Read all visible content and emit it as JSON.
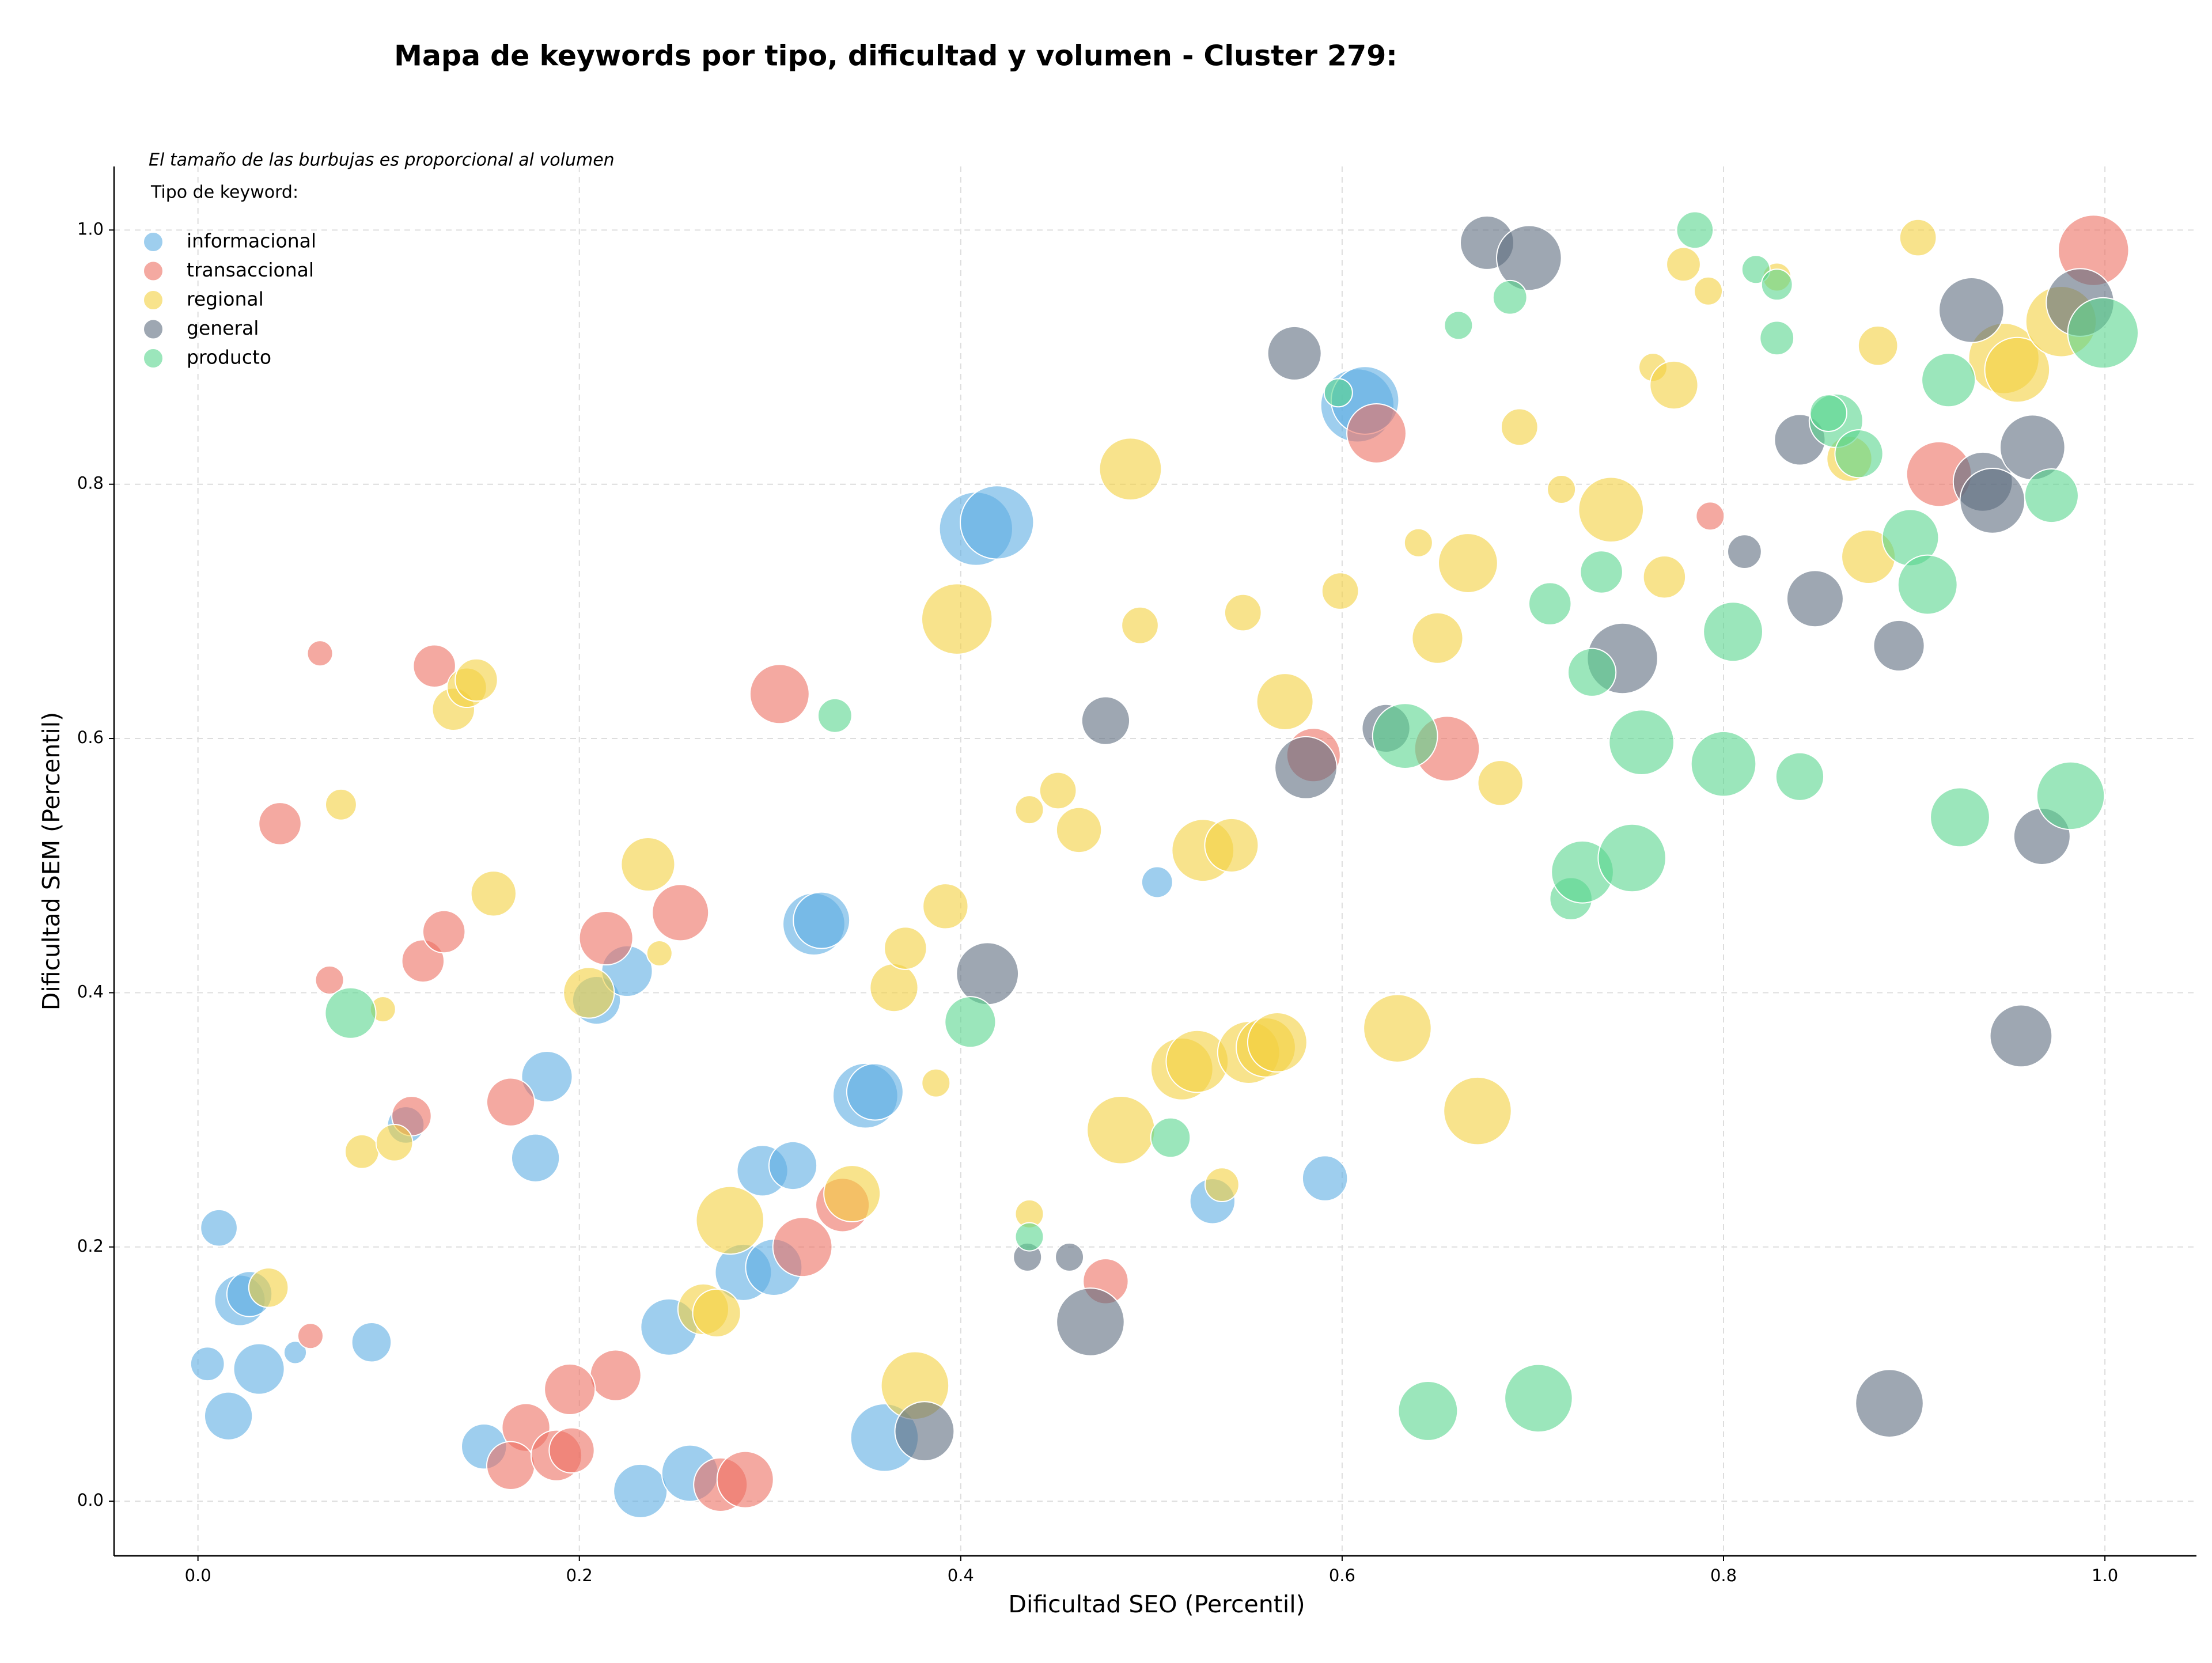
{
  "chart_data": {
    "type": "scatter",
    "title": "Mapa de keywords por tipo, dificultad y volumen - Cluster 279:",
    "xlabel": "Dificultad SEO (Percentil)",
    "ylabel": "Dificultad SEM (Percentil)",
    "note": "El tamaño de las burbujas es proporcional al volumen",
    "legend_title": "Tipo de keyword:",
    "legend": "upper left",
    "grid": true,
    "xlim": [
      -0.044,
      1.048
    ],
    "ylim": [
      -0.043,
      1.05
    ],
    "xticks": [
      {
        "value": 0,
        "label": "0.0"
      },
      0.2,
      0.4,
      0.6,
      0.8,
      {
        "value": 1,
        "label": "1.0"
      }
    ],
    "yticks": [
      {
        "value": 0,
        "label": "0.0"
      },
      0.2,
      0.4,
      0.6,
      0.8,
      {
        "value": 1,
        "label": "1.0"
      }
    ],
    "series": [
      {
        "name": "informacional",
        "color": "#5DADE2",
        "x": [
          0.005,
          0.011,
          0.022,
          0.027,
          0.032,
          0.016,
          0.051,
          0.091,
          0.109,
          0.177,
          0.183,
          0.209,
          0.225,
          0.15,
          0.232,
          0.247,
          0.258,
          0.286,
          0.302,
          0.296,
          0.312,
          0.323,
          0.327,
          0.35,
          0.355,
          0.36,
          0.408,
          0.419,
          0.503,
          0.532,
          0.591,
          0.608,
          0.612
        ],
        "values": [
          0.108,
          0.215,
          0.158,
          0.163,
          0.104,
          0.067,
          0.117,
          0.125,
          0.296,
          0.27,
          0.334,
          0.394,
          0.417,
          0.043,
          0.008,
          0.137,
          0.022,
          0.18,
          0.184,
          0.26,
          0.264,
          0.454,
          0.457,
          0.319,
          0.322,
          0.05,
          0.765,
          0.77,
          0.487,
          0.236,
          0.254,
          0.862,
          0.866
        ],
        "sizes": [
          144,
          169,
          324,
          256,
          324,
          289,
          64,
          196,
          169,
          289,
          324,
          289,
          324,
          256,
          361,
          400,
          400,
          400,
          400,
          324,
          289,
          484,
          400,
          529,
          400,
          576,
          676,
          676,
          121,
          256,
          256,
          676,
          576
        ]
      },
      {
        "name": "transaccional",
        "color": "#EC7063",
        "x": [
          0.064,
          0.043,
          0.069,
          0.059,
          0.124,
          0.118,
          0.129,
          0.112,
          0.164,
          0.214,
          0.253,
          0.305,
          0.219,
          0.195,
          0.172,
          0.164,
          0.188,
          0.196,
          0.274,
          0.287,
          0.317,
          0.338,
          0.476,
          0.585,
          0.618,
          0.655,
          0.793,
          0.913,
          0.994
        ],
        "values": [
          0.667,
          0.533,
          0.41,
          0.13,
          0.657,
          0.425,
          0.448,
          0.303,
          0.314,
          0.443,
          0.463,
          0.635,
          0.099,
          0.088,
          0.058,
          0.028,
          0.036,
          0.04,
          0.013,
          0.017,
          0.2,
          0.233,
          0.173,
          0.587,
          0.84,
          0.592,
          0.775,
          0.808,
          0.984
        ],
        "sizes": [
          81,
          225,
          100,
          81,
          225,
          225,
          225,
          196,
          289,
          361,
          400,
          441,
          324,
          324,
          289,
          289,
          324,
          256,
          361,
          400,
          441,
          361,
          256,
          361,
          441,
          529,
          100,
          529,
          625
        ]
      },
      {
        "name": "regional",
        "color": "#F4D03F",
        "x": [
          0.075,
          0.097,
          0.086,
          0.103,
          0.037,
          0.134,
          0.141,
          0.146,
          0.155,
          0.205,
          0.236,
          0.242,
          0.265,
          0.279,
          0.272,
          0.343,
          0.365,
          0.371,
          0.392,
          0.387,
          0.376,
          0.398,
          0.436,
          0.451,
          0.462,
          0.436,
          0.489,
          0.484,
          0.494,
          0.537,
          0.527,
          0.542,
          0.516,
          0.524,
          0.551,
          0.56,
          0.566,
          0.548,
          0.57,
          0.599,
          0.629,
          0.64,
          0.65,
          0.666,
          0.671,
          0.683,
          0.693,
          0.715,
          0.741,
          0.769,
          0.763,
          0.774,
          0.779,
          0.792,
          0.828,
          0.881,
          0.876,
          0.866,
          0.902,
          0.947,
          0.954,
          0.977
        ],
        "values": [
          0.548,
          0.387,
          0.275,
          0.282,
          0.168,
          0.623,
          0.64,
          0.646,
          0.478,
          0.4,
          0.501,
          0.431,
          0.151,
          0.221,
          0.148,
          0.242,
          0.404,
          0.435,
          0.468,
          0.329,
          0.091,
          0.694,
          0.544,
          0.559,
          0.528,
          0.226,
          0.812,
          0.292,
          0.689,
          0.249,
          0.512,
          0.516,
          0.34,
          0.346,
          0.353,
          0.357,
          0.361,
          0.699,
          0.629,
          0.716,
          0.372,
          0.754,
          0.679,
          0.738,
          0.307,
          0.565,
          0.845,
          0.796,
          0.78,
          0.727,
          0.892,
          0.878,
          0.973,
          0.952,
          0.963,
          0.909,
          0.743,
          0.82,
          0.994,
          0.899,
          0.89,
          0.928
        ],
        "sizes": [
          121,
          81,
          144,
          169,
          196,
          225,
          196,
          225,
          256,
          324,
          361,
          81,
          324,
          576,
          289,
          400,
          289,
          225,
          256,
          100,
          576,
          625,
          100,
          169,
          256,
          100,
          484,
          576,
          169,
          144,
          484,
          361,
          484,
          484,
          484,
          441,
          441,
          169,
          400,
          169,
          576,
          100,
          324,
          441,
          576,
          256,
          169,
          100,
          529,
          225,
          100,
          289,
          144,
          100,
          100,
          196,
          361,
          256,
          169,
          625,
          529,
          625
        ]
      },
      {
        "name": "general",
        "color": "#5D6D7E",
        "x": [
          0.435,
          0.457,
          0.476,
          0.414,
          0.381,
          0.468,
          0.575,
          0.581,
          0.623,
          0.676,
          0.698,
          0.747,
          0.811,
          0.84,
          0.848,
          0.892,
          0.887,
          0.93,
          0.936,
          0.941,
          0.962,
          0.967,
          0.956,
          0.987
        ],
        "values": [
          0.192,
          0.192,
          0.614,
          0.415,
          0.055,
          0.141,
          0.903,
          0.577,
          0.608,
          0.99,
          0.978,
          0.663,
          0.747,
          0.835,
          0.71,
          0.673,
          0.077,
          0.937,
          0.802,
          0.787,
          0.829,
          0.523,
          0.366,
          0.943
        ],
        "sizes": [
          100,
          100,
          289,
          484,
          441,
          576,
          361,
          484,
          289,
          361,
          529,
          625,
          144,
          324,
          400,
          324,
          576,
          529,
          441,
          529,
          529,
          400,
          484,
          576
        ]
      },
      {
        "name": "producto",
        "color": "#58D68D",
        "x": [
          0.08,
          0.334,
          0.405,
          0.436,
          0.51,
          0.598,
          0.633,
          0.645,
          0.661,
          0.688,
          0.703,
          0.709,
          0.72,
          0.726,
          0.731,
          0.736,
          0.752,
          0.757,
          0.785,
          0.8,
          0.805,
          0.817,
          0.828,
          0.828,
          0.84,
          0.859,
          0.855,
          0.871,
          0.898,
          0.907,
          0.918,
          0.924,
          0.972,
          0.982,
          0.999
        ],
        "values": [
          0.384,
          0.618,
          0.377,
          0.208,
          0.286,
          0.872,
          0.602,
          0.071,
          0.925,
          0.947,
          0.081,
          0.706,
          0.474,
          0.495,
          0.652,
          0.731,
          0.506,
          0.597,
          1.0,
          0.58,
          0.684,
          0.969,
          0.915,
          0.957,
          0.57,
          0.85,
          0.856,
          0.824,
          0.758,
          0.721,
          0.882,
          0.538,
          0.791,
          0.555,
          0.919
        ],
        "sizes": [
          324,
          144,
          324,
          100,
          196,
          100,
          529,
          441,
          100,
          144,
          576,
          225,
          225,
          484,
          289,
          225,
          576,
          529,
          169,
          529,
          441,
          100,
          144,
          121,
          289,
          361,
          169,
          289,
          400,
          441,
          361,
          441,
          361,
          576,
          625
        ]
      }
    ]
  }
}
